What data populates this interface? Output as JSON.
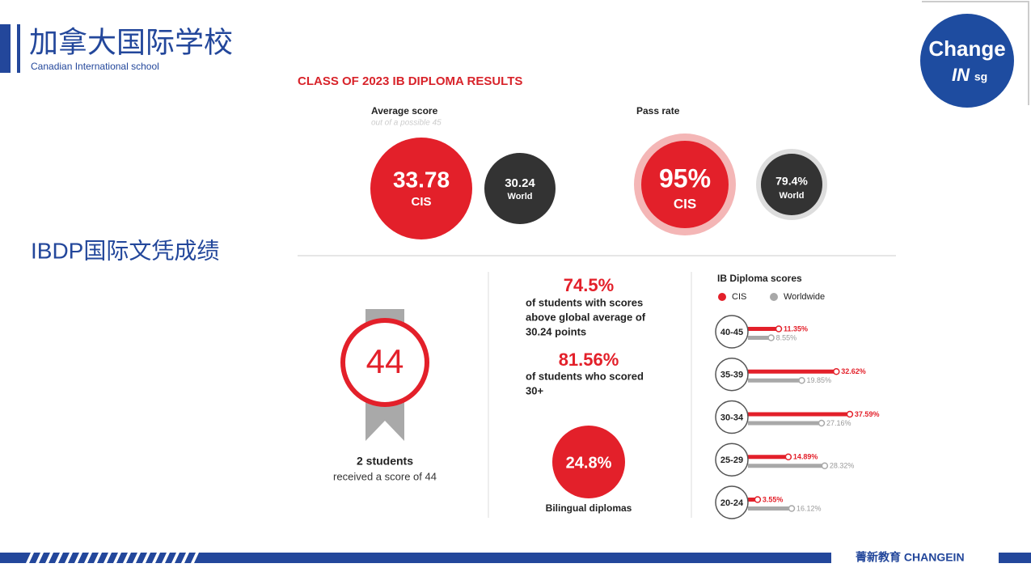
{
  "header": {
    "title": "加拿大国际学校",
    "subtitle": "Canadian International school"
  },
  "section_title": "IBDP国际文凭成绩",
  "logo": {
    "word": "Change",
    "in": "IN",
    "region": "sg"
  },
  "infographic": {
    "title": "CLASS OF 2023 IB DIPLOMA RESULTS",
    "average_score": {
      "label": "Average score",
      "note": "out of a possible 45",
      "cis": {
        "value": "33.78",
        "label": "CIS"
      },
      "world": {
        "value": "30.24",
        "label": "World"
      }
    },
    "pass_rate": {
      "label": "Pass rate",
      "cis": {
        "value": "95%",
        "label": "CIS"
      },
      "world": {
        "value": "79.4%",
        "label": "World"
      }
    },
    "top_score": {
      "value": "44",
      "count": "2 students",
      "caption": "received a score of 44"
    },
    "stats": [
      {
        "value": "74.5%",
        "lines": [
          "of students with scores",
          "above global average of",
          "30.24 points"
        ]
      },
      {
        "value": "81.56%",
        "lines": [
          "of students who scored",
          "30+"
        ]
      }
    ],
    "bilingual": {
      "value": "24.8%",
      "label": "Bilingual diplomas"
    }
  },
  "chart_data": {
    "type": "bar",
    "title": "IB Diploma scores",
    "categories": [
      "40-45",
      "35-39",
      "30-34",
      "25-29",
      "20-24"
    ],
    "series": [
      {
        "name": "CIS",
        "color": "#e3202a",
        "values": [
          11.35,
          32.62,
          37.59,
          14.89,
          3.55
        ],
        "value_labels": [
          "11.35%",
          "32.62%",
          "37.59%",
          "14.89%",
          "3.55%"
        ]
      },
      {
        "name": "Worldwide",
        "color": "#a8a8a8",
        "values": [
          8.55,
          19.85,
          27.16,
          28.32,
          16.12
        ],
        "value_labels": [
          "8.55%",
          "19.85%",
          "27.16%",
          "28.32%",
          "16.12%"
        ]
      }
    ]
  },
  "footer": {
    "brand": "菁新教育 CHANGEIN"
  }
}
